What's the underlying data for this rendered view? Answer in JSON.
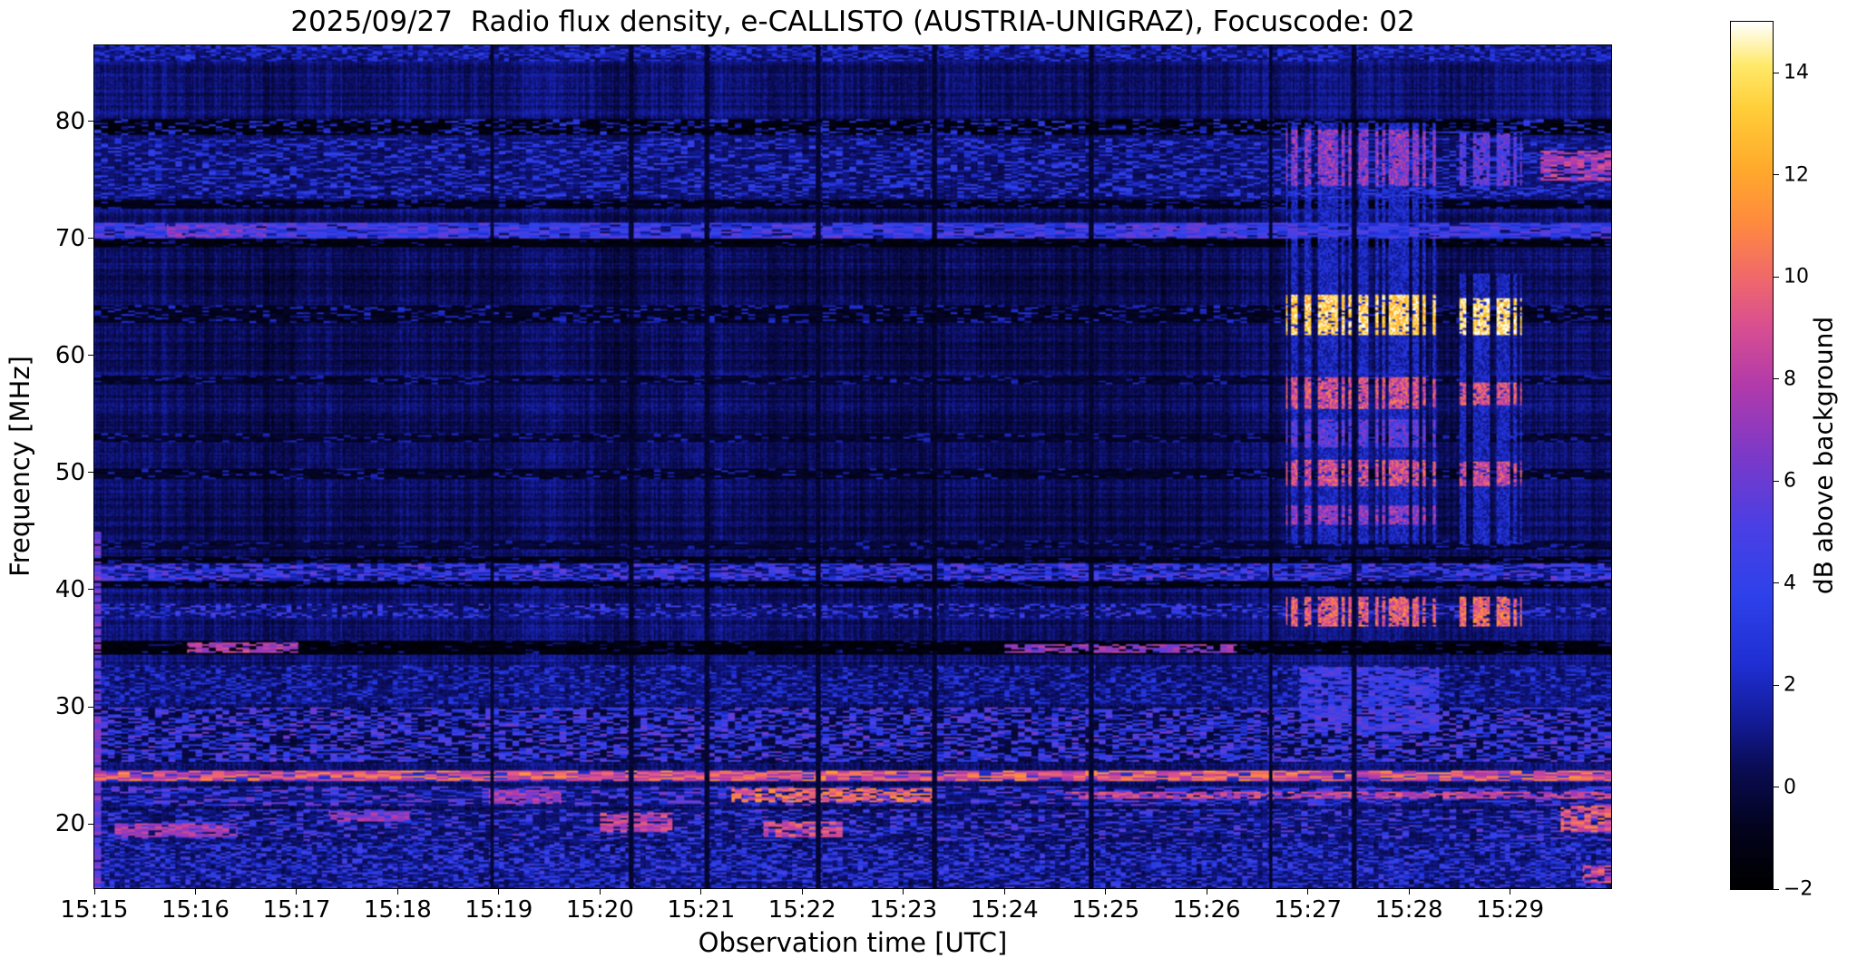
{
  "chart_data": {
    "type": "heatmap",
    "title": "2025/09/27  Radio flux density, e-CALLISTO (AUSTRIA-UNIGRAZ), Focuscode: 02",
    "xlabel": "Observation time [UTC]",
    "ylabel": "Frequency [MHz]",
    "meta": {
      "date": "2025/09/27",
      "network": "e-CALLISTO",
      "station": "AUSTRIA-UNIGRAZ",
      "focuscode": "02"
    },
    "x_ticks": [
      "15:15",
      "15:16",
      "15:17",
      "15:18",
      "15:19",
      "15:20",
      "15:21",
      "15:22",
      "15:23",
      "15:24",
      "15:25",
      "15:26",
      "15:27",
      "15:28",
      "15:29"
    ],
    "x_range_minutes": [
      0,
      15
    ],
    "y_ticks": [
      "20",
      "30",
      "40",
      "50",
      "60",
      "70",
      "80"
    ],
    "y_tick_values": [
      20,
      30,
      40,
      50,
      60,
      70,
      80
    ],
    "y_range_mhz": [
      14.5,
      86.5
    ],
    "y_inverted_high_at_top": true,
    "colorbar": {
      "label": "dB above background",
      "ticks": [
        "−2",
        "0",
        "2",
        "4",
        "6",
        "8",
        "10",
        "12",
        "14"
      ],
      "tick_values": [
        -2,
        0,
        2,
        4,
        6,
        8,
        10,
        12,
        14
      ],
      "vmin": -2,
      "vmax": 15
    },
    "colormap_stops": [
      [
        0.0,
        "#000000"
      ],
      [
        0.07,
        "#03031e"
      ],
      [
        0.14,
        "#0a0c55"
      ],
      [
        0.2,
        "#141d9e"
      ],
      [
        0.26,
        "#1f2fd3"
      ],
      [
        0.34,
        "#2e41ea"
      ],
      [
        0.42,
        "#4b3fe4"
      ],
      [
        0.5,
        "#7c39c8"
      ],
      [
        0.58,
        "#b13aab"
      ],
      [
        0.65,
        "#d94f90"
      ],
      [
        0.71,
        "#f26b67"
      ],
      [
        0.77,
        "#ff8b3e"
      ],
      [
        0.83,
        "#ffa92b"
      ],
      [
        0.9,
        "#ffce38"
      ],
      [
        0.95,
        "#ffe96a"
      ],
      [
        1.0,
        "#ffffff"
      ]
    ],
    "synthesis": {
      "noise": {
        "floor": 0.7,
        "row_jitter": 0.9,
        "col_jitter": 1.0,
        "pixel_jitter": 1.3,
        "pixel_jitter_smooth": 0.85,
        "high_band_dim": 0.35
      },
      "bands": [
        {
          "f_lo": 85.2,
          "f_hi": 86.5,
          "base": 0.8,
          "speckle": 3.0,
          "density": 0.55,
          "dash": 3
        },
        {
          "f_lo": 78.9,
          "f_hi": 80.2,
          "base": -1.8,
          "speckle": 4.0,
          "density": 0.3,
          "dash": 4
        },
        {
          "f_lo": 73.6,
          "f_hi": 78.6,
          "base": 0.2,
          "speckle": 4.2,
          "density": 0.5,
          "dash": 4
        },
        {
          "f_lo": 72.7,
          "f_hi": 73.4,
          "base": -1.5,
          "speckle": 1.5,
          "density": 0.15,
          "dash": 4
        },
        {
          "f_lo": 70.1,
          "f_hi": 71.4,
          "base": 2.2,
          "speckle": 4.0,
          "density": 0.85,
          "dash": 6
        },
        {
          "f_lo": 69.3,
          "f_hi": 70.0,
          "base": -1.8,
          "speckle": 1.0,
          "density": 0.1,
          "dash": 4
        },
        {
          "f_lo": 62.9,
          "f_hi": 64.3,
          "base": -1.2,
          "speckle": 2.0,
          "density": 0.2,
          "dash": 4
        },
        {
          "f_lo": 57.7,
          "f_hi": 58.4,
          "base": -0.9,
          "speckle": 1.2,
          "density": 0.15,
          "dash": 4
        },
        {
          "f_lo": 52.7,
          "f_hi": 53.4,
          "base": -0.9,
          "speckle": 1.2,
          "density": 0.15,
          "dash": 4
        },
        {
          "f_lo": 49.6,
          "f_hi": 50.4,
          "base": -1.1,
          "speckle": 1.5,
          "density": 0.15,
          "dash": 4
        },
        {
          "f_lo": 43.5,
          "f_hi": 44.2,
          "base": -0.8,
          "speckle": 1.0,
          "density": 0.12,
          "dash": 4
        },
        {
          "f_lo": 40.9,
          "f_hi": 42.3,
          "base": 1.2,
          "speckle": 5.0,
          "density": 0.7,
          "dash": 4
        },
        {
          "f_lo": 40.2,
          "f_hi": 40.9,
          "base": -1.6,
          "speckle": 1.0,
          "density": 0.12,
          "dash": 4
        },
        {
          "f_lo": 42.3,
          "f_hi": 42.9,
          "base": -1.4,
          "speckle": 1.0,
          "density": 0.12,
          "dash": 4
        },
        {
          "f_lo": 37.7,
          "f_hi": 38.9,
          "base": 0.4,
          "speckle": 5.0,
          "density": 0.45,
          "dash": 3
        },
        {
          "f_lo": 34.5,
          "f_hi": 35.7,
          "base": -1.9,
          "speckle": 1.0,
          "density": 0.1,
          "dash": 4
        },
        {
          "f_lo": 30.4,
          "f_hi": 33.6,
          "base": 0.2,
          "speckle": 3.5,
          "density": 0.5,
          "dash": 3
        },
        {
          "f_lo": 25.4,
          "f_hi": 30.0,
          "base": -0.4,
          "speckle": 4.8,
          "density": 0.55,
          "dash": 4
        },
        {
          "f_lo": 23.7,
          "f_hi": 24.6,
          "base": 7.0,
          "speckle": 4.5,
          "density": 0.85,
          "dash": 7
        },
        {
          "f_lo": 21.7,
          "f_hi": 23.3,
          "base": 1.2,
          "speckle": 5.5,
          "density": 0.5,
          "dash": 5
        },
        {
          "f_lo": 18.7,
          "f_hi": 21.3,
          "base": 0.6,
          "speckle": 5.5,
          "density": 0.45,
          "dash": 4
        },
        {
          "f_lo": 14.5,
          "f_hi": 18.5,
          "base": 0.2,
          "speckle": 5.0,
          "density": 0.6,
          "dash": 3
        }
      ],
      "blobs": [
        {
          "t0": 0.0,
          "t1": 0.06,
          "f0": 14.5,
          "f1": 45.0,
          "db": 6.0
        },
        {
          "t0": 0.7,
          "t1": 1.7,
          "f0": 70.3,
          "f1": 71.2,
          "db": 6.5
        },
        {
          "t0": 10.2,
          "t1": 11.3,
          "f0": 70.3,
          "f1": 71.2,
          "db": 5.0
        },
        {
          "t0": 14.3,
          "t1": 15.0,
          "f0": 75.0,
          "f1": 77.5,
          "db": 8.0
        },
        {
          "t0": 0.9,
          "t1": 2.0,
          "f0": 34.7,
          "f1": 35.5,
          "db": 8.0
        },
        {
          "t0": 9.0,
          "t1": 11.3,
          "f0": 34.7,
          "f1": 35.4,
          "db": 7.0
        },
        {
          "t0": 6.3,
          "t1": 8.3,
          "f0": 22.0,
          "f1": 23.1,
          "db": 10.0
        },
        {
          "t0": 9.6,
          "t1": 15.0,
          "f0": 22.2,
          "f1": 22.9,
          "db": 8.5
        },
        {
          "t0": 5.0,
          "t1": 5.7,
          "f0": 19.4,
          "f1": 21.0,
          "db": 8.5
        },
        {
          "t0": 6.6,
          "t1": 7.4,
          "f0": 18.9,
          "f1": 20.3,
          "db": 9.0
        },
        {
          "t0": 14.5,
          "t1": 15.0,
          "f0": 19.3,
          "f1": 21.6,
          "db": 9.5
        },
        {
          "t0": 0.2,
          "t1": 1.4,
          "f0": 18.9,
          "f1": 20.1,
          "db": 7.5
        },
        {
          "t0": 14.7,
          "t1": 15.0,
          "f0": 15.0,
          "f1": 16.5,
          "db": 9.0
        },
        {
          "t0": 2.3,
          "t1": 3.1,
          "f0": 20.3,
          "f1": 21.2,
          "db": 7.0
        },
        {
          "t0": 3.9,
          "t1": 4.6,
          "f0": 21.8,
          "f1": 23.0,
          "db": 7.5
        },
        {
          "t0": 11.9,
          "t1": 13.3,
          "f0": 28.0,
          "f1": 33.5,
          "db": 4.5
        }
      ],
      "bursts": [
        {
          "t0": 11.78,
          "t1": 13.25,
          "stripe": 2,
          "on": 0.55,
          "bands": [
            {
              "f0": 74.6,
              "f1": 79.4,
              "db": 7.0
            },
            {
              "f0": 61.8,
              "f1": 65.2,
              "db": 13.5
            },
            {
              "f0": 55.6,
              "f1": 58.2,
              "db": 9.0
            },
            {
              "f0": 52.2,
              "f1": 54.6,
              "db": 5.5
            },
            {
              "f0": 48.9,
              "f1": 51.2,
              "db": 9.0
            },
            {
              "f0": 45.6,
              "f1": 47.2,
              "db": 7.0
            },
            {
              "f0": 36.9,
              "f1": 39.4,
              "db": 9.5
            }
          ],
          "general": {
            "f0": 44.0,
            "f1": 80.0,
            "db": 2.5
          }
        },
        {
          "t0": 13.5,
          "t1": 14.1,
          "stripe": 2,
          "on": 0.6,
          "bands": [
            {
              "f0": 74.6,
              "f1": 79.0,
              "db": 5.5
            },
            {
              "f0": 61.8,
              "f1": 65.0,
              "db": 14.0
            },
            {
              "f0": 55.8,
              "f1": 57.8,
              "db": 9.0
            },
            {
              "f0": 48.9,
              "f1": 51.0,
              "db": 8.5
            },
            {
              "f0": 36.9,
              "f1": 39.4,
              "db": 10.0
            }
          ],
          "general": {
            "f0": 44.0,
            "f1": 67.0,
            "db": 2.5
          }
        }
      ],
      "dark_columns": [
        3.92,
        5.3,
        6.05,
        7.15,
        8.3,
        9.85,
        11.62,
        12.45
      ]
    }
  }
}
